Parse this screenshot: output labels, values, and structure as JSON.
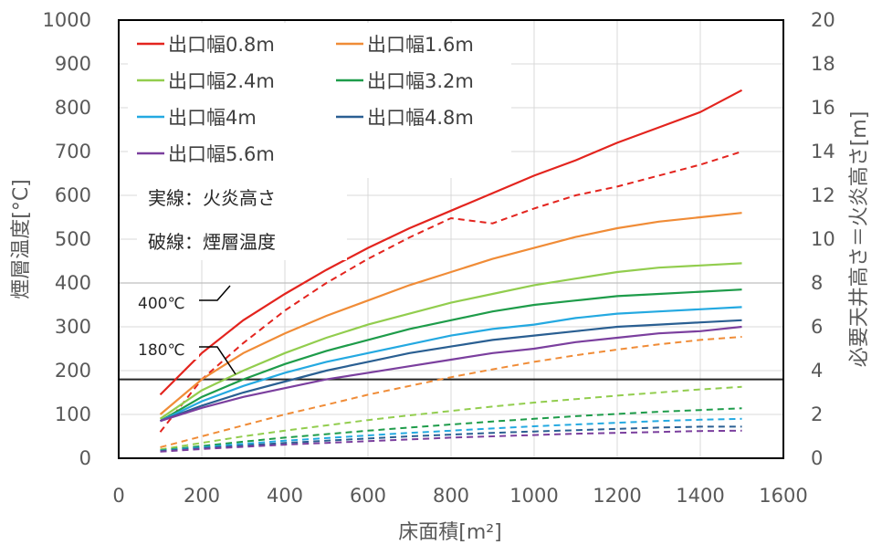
{
  "chart_data": {
    "type": "line",
    "xlabel": "床面積[m²]",
    "ylabel_left": "煙層温度[°C]",
    "ylabel_right": "必要天井高さ＝火炎高さ[m]",
    "xlim": [
      0,
      1600
    ],
    "ylim_left": [
      0,
      1000
    ],
    "ylim_right": [
      0,
      20
    ],
    "x_ticks": [
      "0",
      "200",
      "400",
      "600",
      "800",
      "1000",
      "1200",
      "1400",
      "1600"
    ],
    "y_left_ticks": [
      "0",
      "100",
      "200",
      "300",
      "400",
      "500",
      "600",
      "700",
      "800",
      "900",
      "1000"
    ],
    "y_right_ticks": [
      "0",
      "2",
      "4",
      "6",
      "8",
      "10",
      "12",
      "14",
      "16",
      "18",
      "20"
    ],
    "grid": true,
    "legend_position": "top-left",
    "x": [
      100,
      200,
      300,
      400,
      500,
      600,
      700,
      800,
      900,
      1000,
      1100,
      1200,
      1300,
      1400,
      1500
    ],
    "series": [
      {
        "name": "出口幅0.8m",
        "color": "#E3241E",
        "flame_height_m": [
          2.9,
          4.8,
          6.3,
          7.5,
          8.6,
          9.6,
          10.5,
          11.3,
          12.1,
          12.9,
          13.6,
          14.4,
          15.1,
          15.8,
          16.8
        ],
        "smoke_temp_C": [
          60,
          180,
          263,
          337,
          400,
          455,
          504,
          548,
          536,
          570,
          600,
          620,
          645,
          670,
          700
        ]
      },
      {
        "name": "出口幅1.6m",
        "color": "#F08C37",
        "flame_height_m": [
          2.0,
          3.6,
          4.8,
          5.7,
          6.5,
          7.2,
          7.9,
          8.5,
          9.1,
          9.6,
          10.1,
          10.5,
          10.8,
          11.0,
          11.2
        ],
        "smoke_temp_C": [
          25,
          50,
          75,
          100,
          122,
          145,
          165,
          185,
          203,
          220,
          235,
          248,
          260,
          270,
          277
        ]
      },
      {
        "name": "出口幅2.4m",
        "color": "#92CD4E",
        "flame_height_m": [
          1.8,
          3.1,
          4.0,
          4.8,
          5.5,
          6.1,
          6.6,
          7.1,
          7.5,
          7.9,
          8.2,
          8.5,
          8.7,
          8.8,
          8.9
        ],
        "smoke_temp_C": [
          20,
          35,
          50,
          63,
          75,
          87,
          98,
          108,
          118,
          127,
          135,
          143,
          150,
          157,
          163
        ]
      },
      {
        "name": "出口幅3.2m",
        "color": "#1E9C4A",
        "flame_height_m": [
          1.7,
          2.8,
          3.6,
          4.3,
          4.9,
          5.4,
          5.9,
          6.3,
          6.7,
          7.0,
          7.2,
          7.4,
          7.5,
          7.6,
          7.7
        ],
        "smoke_temp_C": [
          18,
          28,
          38,
          47,
          55,
          63,
          70,
          77,
          84,
          90,
          96,
          101,
          106,
          110,
          114
        ]
      },
      {
        "name": "出口幅4m",
        "color": "#24A9E1",
        "flame_height_m": [
          1.7,
          2.6,
          3.3,
          3.9,
          4.4,
          4.8,
          5.2,
          5.6,
          5.9,
          6.1,
          6.4,
          6.6,
          6.7,
          6.8,
          6.9
        ],
        "smoke_temp_C": [
          17,
          25,
          33,
          40,
          46,
          52,
          58,
          63,
          68,
          73,
          77,
          81,
          85,
          88,
          90
        ]
      },
      {
        "name": "出口幅4.8m",
        "color": "#2A5F92",
        "flame_height_m": [
          1.7,
          2.4,
          3.0,
          3.5,
          4.0,
          4.4,
          4.8,
          5.1,
          5.4,
          5.6,
          5.8,
          6.0,
          6.1,
          6.2,
          6.3
        ],
        "smoke_temp_C": [
          16,
          23,
          29,
          35,
          40,
          45,
          50,
          54,
          58,
          61,
          64,
          67,
          70,
          72,
          72
        ]
      },
      {
        "name": "出口幅5.6m",
        "color": "#7B3F9E",
        "flame_height_m": [
          1.7,
          2.3,
          2.8,
          3.2,
          3.6,
          3.9,
          4.2,
          4.5,
          4.8,
          5.0,
          5.3,
          5.5,
          5.7,
          5.8,
          6.0
        ],
        "smoke_temp_C": [
          15,
          21,
          26,
          31,
          35,
          39,
          43,
          47,
          50,
          53,
          56,
          58,
          60,
          62,
          63
        ]
      }
    ],
    "reference_lines_C": [
      180,
      400
    ],
    "annotations": {
      "note_solid": "実線：火炎高さ",
      "note_dashed": "破線：煙層温度",
      "label_400": "400℃",
      "label_180": "180℃"
    }
  }
}
